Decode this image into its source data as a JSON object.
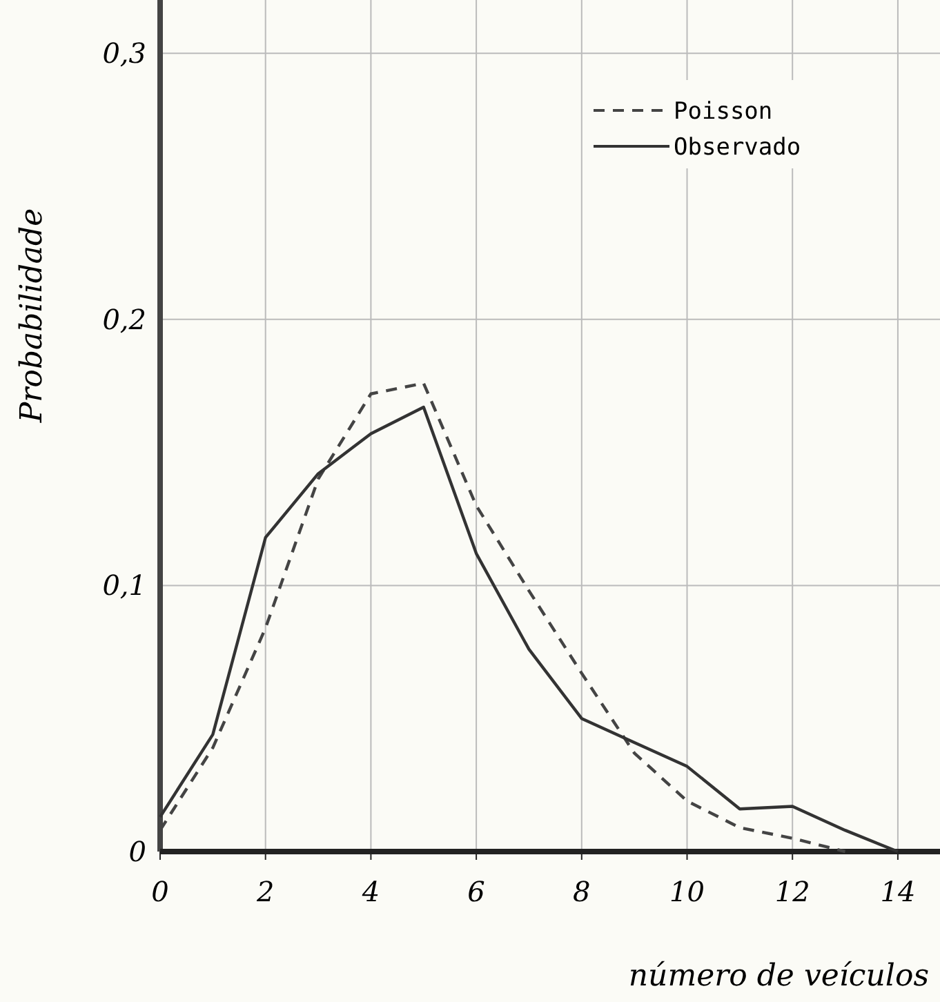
{
  "chart_data": {
    "type": "line",
    "xlabel": "número de veículos",
    "ylabel": "Probabilidade",
    "x": [
      0,
      1,
      2,
      3,
      4,
      5,
      6,
      7,
      8,
      9,
      10,
      11,
      12,
      13,
      14
    ],
    "series": [
      {
        "name": "Poisson",
        "color": "#444444",
        "line_style": "dashed",
        "values": [
          0.008,
          0.039,
          0.084,
          0.14,
          0.172,
          0.176,
          0.13,
          0.098,
          0.067,
          0.037,
          0.019,
          0.009,
          0.005,
          0,
          null
        ]
      },
      {
        "name": "Observado",
        "color": "#333333",
        "line_style": "solid",
        "values": [
          0.013,
          0.044,
          0.118,
          0.142,
          0.157,
          0.167,
          0.112,
          0.076,
          0.05,
          0.041,
          0.032,
          0.016,
          0.017,
          0.008,
          0
        ]
      }
    ],
    "xlim": [
      0,
      14.8
    ],
    "xticks": [
      0,
      2,
      4,
      6,
      8,
      10,
      12,
      14
    ],
    "ylim": [
      0,
      0.32
    ],
    "yticks": [
      {
        "value": 0,
        "label": "0"
      },
      {
        "value": 0.1,
        "label": "0,1"
      },
      {
        "value": 0.2,
        "label": "0,2"
      },
      {
        "value": 0.3,
        "label": "0,3"
      }
    ],
    "grid": true,
    "legend": "top right",
    "marker": "none"
  }
}
